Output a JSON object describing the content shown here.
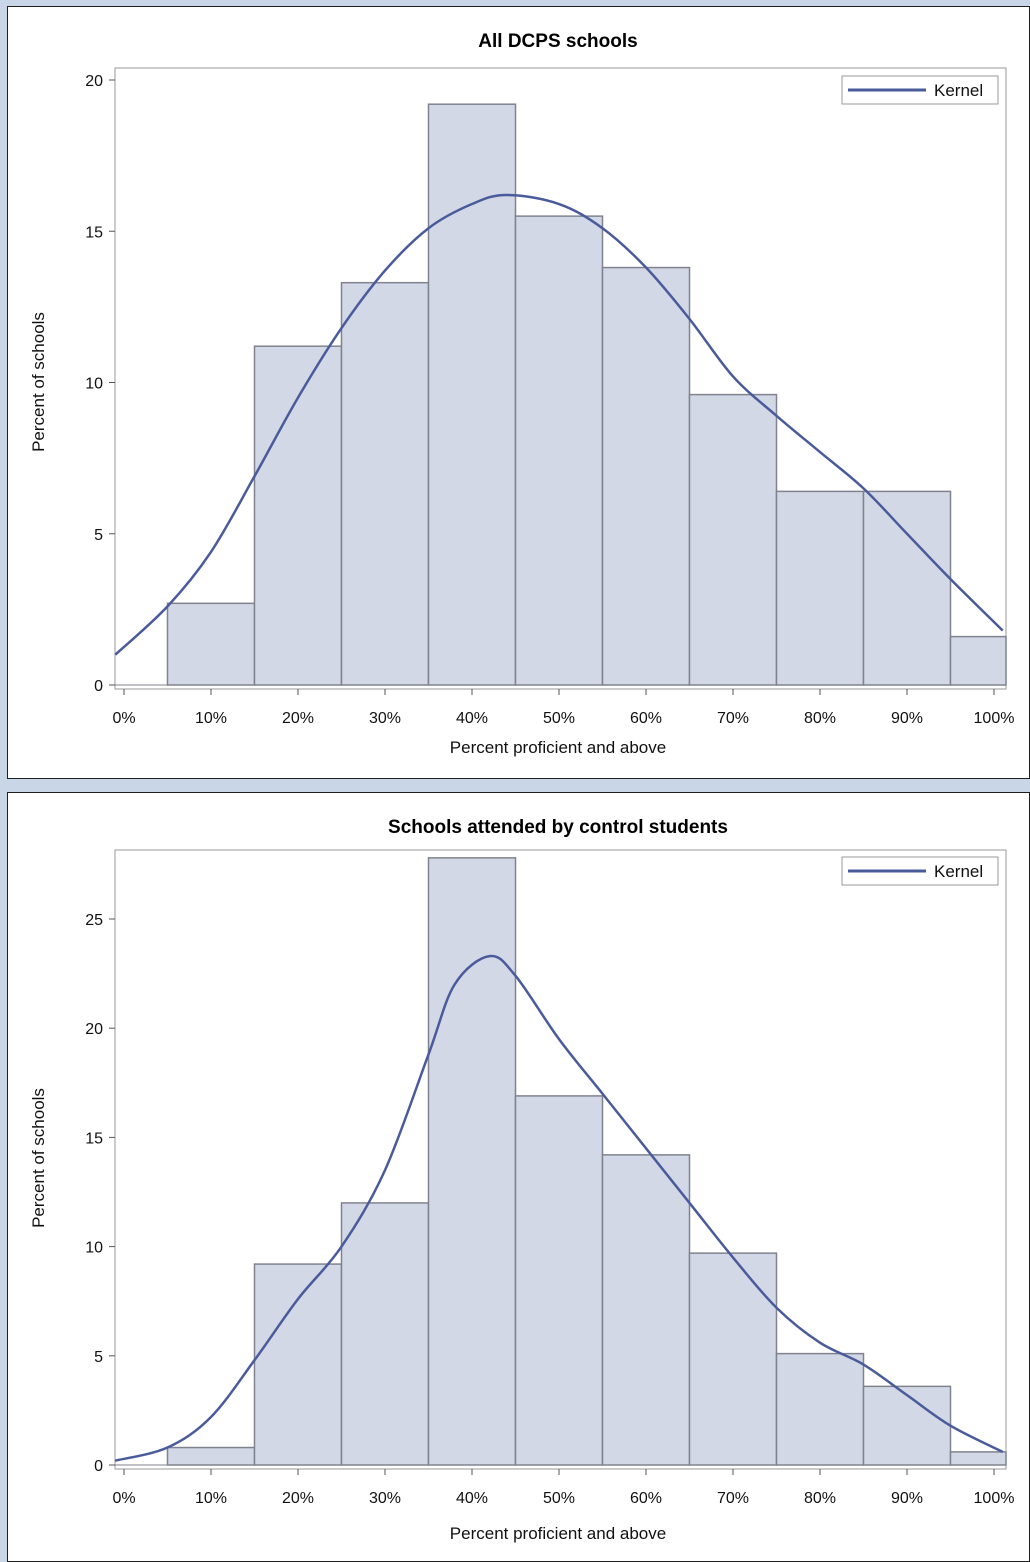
{
  "colors": {
    "bar_fill": "#d3d8e7",
    "bar_stroke": "#80838f",
    "kernel_line": "#4a5b9b",
    "frame": "#9a9a9a",
    "page_background": "#c9d6e8"
  },
  "chart_data": [
    {
      "type": "bar",
      "title": "All DCPS schools",
      "xlabel": "Percent proficient and above",
      "ylabel": "Percent of schools",
      "xlim": [
        0,
        100
      ],
      "ylim": [
        0,
        20
      ],
      "x_ticks": [
        "0%",
        "10%",
        "20%",
        "30%",
        "40%",
        "50%",
        "60%",
        "70%",
        "80%",
        "90%",
        "100%"
      ],
      "y_ticks": [
        "0",
        "5",
        "10",
        "15",
        "20"
      ],
      "categories": [
        "0%",
        "10%",
        "20%",
        "30%",
        "40%",
        "50%",
        "60%",
        "70%",
        "80%",
        "90%",
        "100%"
      ],
      "bin_width": 10,
      "values": [
        0,
        2.7,
        11.2,
        13.3,
        19.2,
        15.5,
        13.8,
        9.6,
        6.4,
        6.4,
        1.6
      ],
      "series": [
        {
          "name": "Kernel",
          "type": "line",
          "x": [
            -1,
            5,
            10,
            15,
            20,
            25,
            30,
            35,
            40,
            44,
            50,
            55,
            60,
            65,
            70,
            75,
            80,
            85,
            90,
            95,
            101
          ],
          "y": [
            1.0,
            2.6,
            4.4,
            6.9,
            9.5,
            11.8,
            13.7,
            15.1,
            15.9,
            16.2,
            15.9,
            15.1,
            13.8,
            12.1,
            10.2,
            8.9,
            7.7,
            6.5,
            5.0,
            3.5,
            1.8
          ]
        }
      ],
      "legend": {
        "position": "top-right",
        "entries": [
          "Kernel"
        ]
      },
      "grid": false
    },
    {
      "type": "bar",
      "title": "Schools attended by control students",
      "xlabel": "Percent proficient and above",
      "ylabel": "Percent of schools",
      "xlim": [
        0,
        100
      ],
      "ylim": [
        0,
        28
      ],
      "x_ticks": [
        "0%",
        "10%",
        "20%",
        "30%",
        "40%",
        "50%",
        "60%",
        "70%",
        "80%",
        "90%",
        "100%"
      ],
      "y_ticks": [
        "0",
        "5",
        "10",
        "15",
        "20",
        "25"
      ],
      "categories": [
        "0%",
        "10%",
        "20%",
        "30%",
        "40%",
        "50%",
        "60%",
        "70%",
        "80%",
        "90%",
        "100%"
      ],
      "bin_width": 10,
      "values": [
        0,
        0.8,
        9.2,
        12.0,
        27.8,
        16.9,
        14.2,
        9.7,
        5.1,
        3.6,
        0.6
      ],
      "series": [
        {
          "name": "Kernel",
          "type": "line",
          "x": [
            -1,
            5,
            10,
            15,
            20,
            25,
            30,
            35,
            38,
            42,
            45,
            50,
            55,
            60,
            65,
            70,
            75,
            80,
            85,
            90,
            95,
            101
          ],
          "y": [
            0.2,
            0.8,
            2.2,
            4.8,
            7.6,
            10.0,
            13.5,
            18.8,
            22.0,
            23.3,
            22.4,
            19.5,
            17.0,
            14.5,
            12.0,
            9.5,
            7.2,
            5.6,
            4.6,
            3.2,
            1.8,
            0.6
          ]
        }
      ],
      "legend": {
        "position": "top-right",
        "entries": [
          "Kernel"
        ]
      },
      "grid": false
    }
  ]
}
